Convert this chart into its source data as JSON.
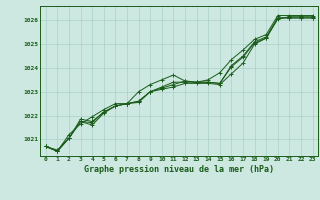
{
  "title": "Graphe pression niveau de la mer (hPa)",
  "bg_color": "#cce8e0",
  "line_color": "#1a5c1a",
  "grid_color": "#aad0c8",
  "text_color": "#1a5c1a",
  "xlim": [
    -0.5,
    23.5
  ],
  "ylim": [
    1020.3,
    1026.6
  ],
  "yticks": [
    1021,
    1022,
    1023,
    1024,
    1025,
    1026
  ],
  "xticks": [
    0,
    1,
    2,
    3,
    4,
    5,
    6,
    7,
    8,
    9,
    10,
    11,
    12,
    13,
    14,
    15,
    16,
    17,
    18,
    19,
    20,
    21,
    22,
    23
  ],
  "series": [
    [
      1020.7,
      1020.55,
      1021.05,
      1021.75,
      1021.6,
      1022.1,
      1022.4,
      1022.5,
      1022.55,
      1023.0,
      1023.1,
      1023.2,
      1023.35,
      1023.35,
      1023.35,
      1023.3,
      1023.75,
      1024.2,
      1025.0,
      1025.25,
      1026.1,
      1026.1,
      1026.1,
      1026.1
    ],
    [
      1020.7,
      1020.5,
      1021.05,
      1021.85,
      1021.75,
      1022.15,
      1022.4,
      1022.5,
      1022.6,
      1023.0,
      1023.2,
      1023.4,
      1023.4,
      1023.4,
      1023.4,
      1023.35,
      1024.05,
      1024.45,
      1025.05,
      1025.25,
      1026.05,
      1026.15,
      1026.15,
      1026.15
    ],
    [
      1020.7,
      1020.5,
      1021.2,
      1021.65,
      1021.95,
      1022.25,
      1022.5,
      1022.5,
      1023.0,
      1023.3,
      1023.5,
      1023.7,
      1023.45,
      1023.4,
      1023.5,
      1023.8,
      1024.35,
      1024.75,
      1025.2,
      1025.4,
      1026.2,
      1026.2,
      1026.2,
      1026.2
    ],
    [
      1020.7,
      1020.5,
      1021.05,
      1021.75,
      1021.7,
      1022.15,
      1022.4,
      1022.5,
      1022.6,
      1023.0,
      1023.15,
      1023.3,
      1023.45,
      1023.4,
      1023.4,
      1023.35,
      1024.1,
      1024.5,
      1025.1,
      1025.3,
      1026.1,
      1026.1,
      1026.1,
      1026.1
    ]
  ]
}
